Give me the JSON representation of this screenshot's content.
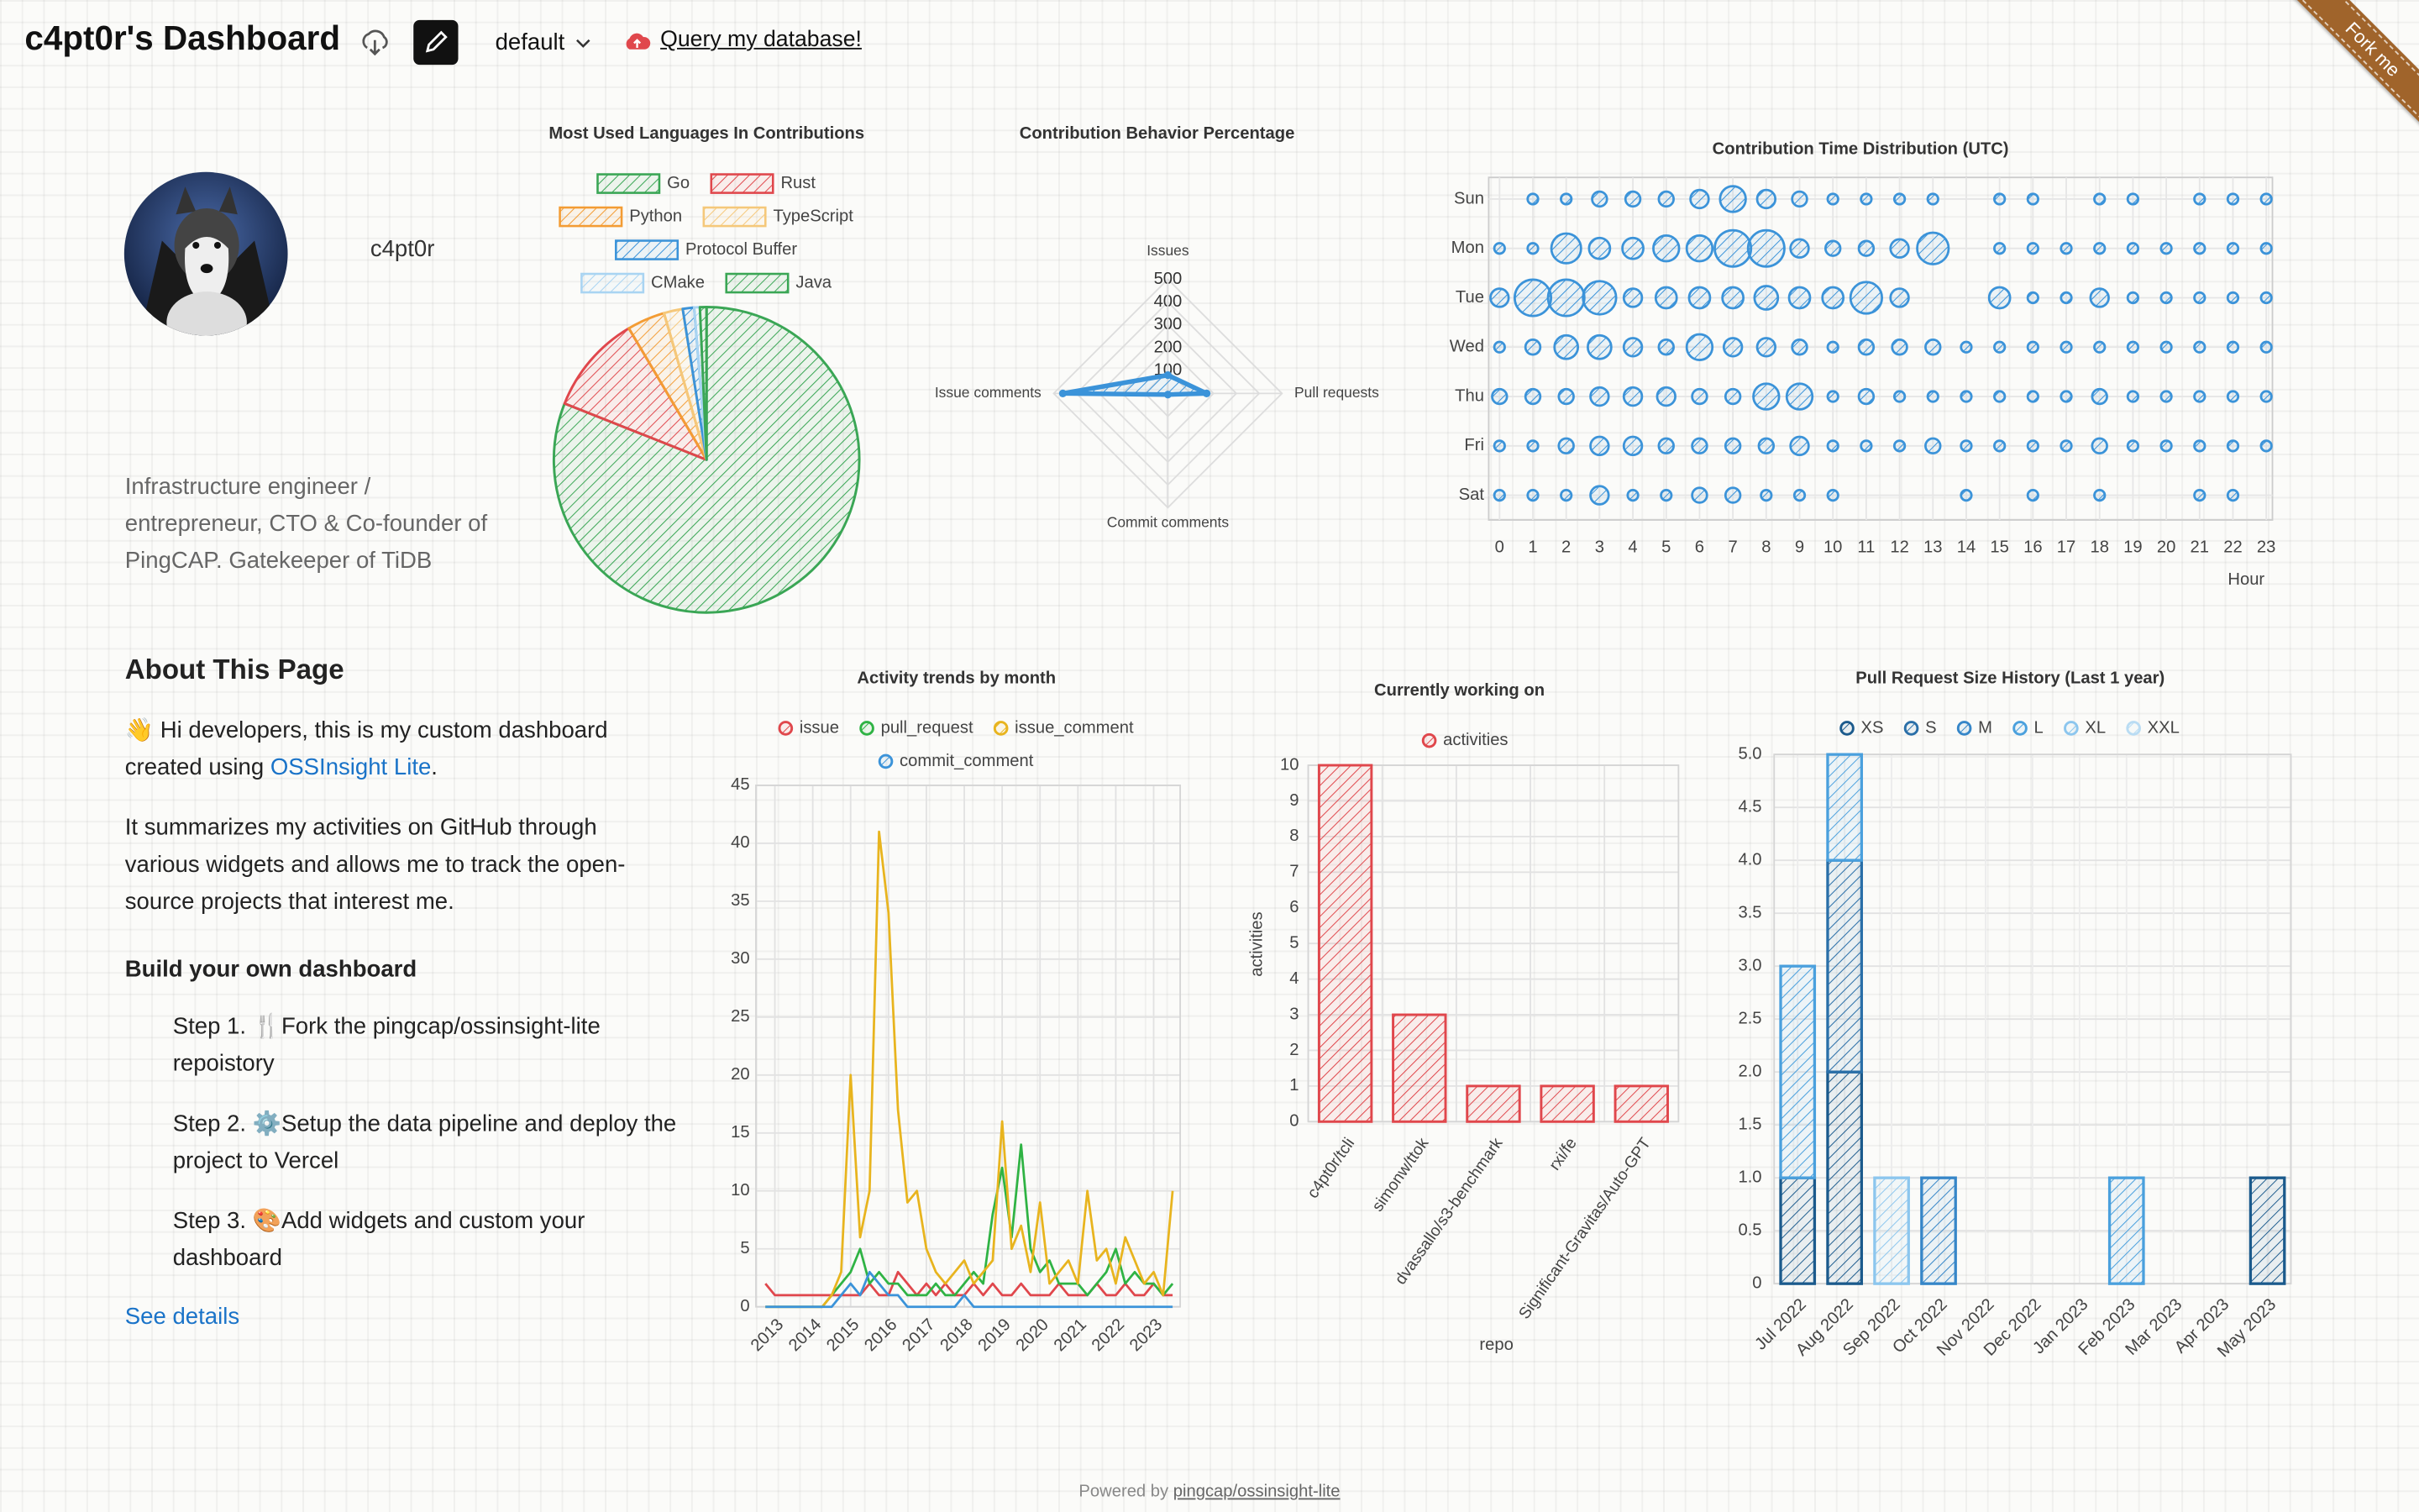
{
  "header": {
    "title": "c4pt0r's Dashboard",
    "theme": "default",
    "query_link": "Query my database!",
    "ribbon": "Fork me"
  },
  "profile": {
    "username": "c4pt0r",
    "bio": "Infrastructure engineer / entrepreneur, CTO & Co-founder of PingCAP. Gatekeeper of TiDB"
  },
  "about": {
    "title": "About This Page",
    "intro_prefix": "👋 Hi developers, this is my custom dashboard created using ",
    "intro_link": "OSSInsight Lite",
    "intro_suffix": ".",
    "paragraph": "It summarizes my activities on GitHub through various widgets and allows me to track the open-source projects that interest me.",
    "build_title": "Build your own dashboard",
    "steps": [
      "Step 1. 🍴Fork the pingcap/ossinsight-lite repoistory",
      "Step 2. ⚙️Setup the data pipeline and deploy the project to Vercel",
      "Step 3. 🎨Add widgets and custom your dashboard"
    ],
    "see_details": "See details"
  },
  "footer": {
    "prefix": "Powered by",
    "link": "pingcap/ossinsight-lite"
  },
  "chart_data": [
    {
      "type": "pie",
      "title": "Most Used Languages In Contributions",
      "categories": [
        "Go",
        "Rust",
        "Python",
        "TypeScript",
        "Protocol Buffer",
        "CMake",
        "Java"
      ],
      "values": [
        81,
        10.5,
        4,
        2,
        1.2,
        0.6,
        0.7
      ],
      "colors": [
        "#3aa655",
        "#e0474c",
        "#f39c34",
        "#f5c87a",
        "#3b93d9",
        "#a9d4f2",
        "#3aa655"
      ]
    },
    {
      "type": "radar",
      "title": "Contribution Behavior Percentage",
      "categories": [
        "Issues",
        "Pull requests",
        "Commit comments",
        "Issue comments"
      ],
      "values": [
        80,
        170,
        5,
        460
      ],
      "color": "#3b93d9",
      "ylim": [
        0,
        500
      ],
      "yticks": [
        100,
        200,
        300,
        400,
        500
      ]
    },
    {
      "type": "bubble",
      "title": "Contribution Time Distribution (UTC)",
      "xlabel": "Hour",
      "color": "#3b93d9",
      "categories": [
        "Sun",
        "Mon",
        "Tue",
        "Wed",
        "Thu",
        "Fri",
        "Sat"
      ],
      "x": [
        0,
        1,
        2,
        3,
        4,
        5,
        6,
        7,
        8,
        9,
        10,
        11,
        12,
        13,
        14,
        15,
        16,
        17,
        18,
        19,
        20,
        21,
        22,
        23
      ],
      "xlim": [
        0,
        23
      ],
      "xticks": [
        0,
        1,
        2,
        3,
        4,
        5,
        6,
        7,
        8,
        9,
        10,
        11,
        12,
        13,
        14,
        15,
        16,
        17,
        18,
        19,
        20,
        21,
        22,
        23
      ],
      "values": [
        [
          0,
          1,
          1,
          2,
          2,
          2,
          3,
          6,
          3,
          2,
          1,
          1,
          1,
          1,
          0,
          1,
          1,
          0,
          1,
          1,
          0,
          1,
          1,
          1
        ],
        [
          1,
          1,
          8,
          4,
          4,
          6,
          6,
          12,
          12,
          3,
          2,
          2,
          3,
          9,
          0,
          1,
          1,
          1,
          1,
          1,
          1,
          1,
          1,
          1
        ],
        [
          3,
          12,
          12,
          10,
          3,
          4,
          4,
          4,
          5,
          4,
          4,
          9,
          3,
          0,
          0,
          4,
          1,
          1,
          3,
          1,
          1,
          1,
          1,
          1
        ],
        [
          1,
          2,
          5,
          5,
          3,
          2,
          6,
          3,
          3,
          2,
          1,
          2,
          2,
          2,
          1,
          1,
          1,
          1,
          1,
          1,
          1,
          1,
          1,
          1
        ],
        [
          2,
          2,
          2,
          3,
          3,
          3,
          2,
          2,
          6,
          6,
          1,
          2,
          1,
          1,
          1,
          1,
          1,
          1,
          2,
          1,
          1,
          1,
          1,
          1
        ],
        [
          1,
          1,
          2,
          3,
          3,
          2,
          2,
          2,
          2,
          3,
          1,
          1,
          1,
          2,
          1,
          1,
          1,
          1,
          2,
          1,
          1,
          1,
          1,
          1
        ],
        [
          1,
          1,
          1,
          3,
          1,
          1,
          2,
          2,
          1,
          1,
          1,
          0,
          0,
          0,
          1,
          0,
          1,
          0,
          1,
          0,
          0,
          1,
          1,
          0
        ]
      ]
    },
    {
      "type": "line",
      "title": "Activity trends by month",
      "x": [
        2012.75,
        2013,
        2013.25,
        2013.5,
        2013.75,
        2014,
        2014.25,
        2014.5,
        2014.75,
        2015,
        2015.25,
        2015.5,
        2015.75,
        2016,
        2016.25,
        2016.5,
        2016.75,
        2017,
        2017.25,
        2017.5,
        2017.75,
        2018,
        2018.25,
        2018.5,
        2018.75,
        2019,
        2019.25,
        2019.5,
        2019.75,
        2020,
        2020.25,
        2020.5,
        2020.75,
        2021,
        2021.25,
        2021.5,
        2021.75,
        2022,
        2022.25,
        2022.5,
        2022.75,
        2023,
        2023.25,
        2023.5
      ],
      "xlim": [
        2012.5,
        2023.7
      ],
      "xticks": [
        2013,
        2014,
        2015,
        2016,
        2017,
        2018,
        2019,
        2020,
        2021,
        2022,
        2023
      ],
      "ylim": [
        0,
        45
      ],
      "yticks": [
        0,
        5,
        10,
        15,
        20,
        25,
        30,
        35,
        40,
        45
      ],
      "series": [
        {
          "name": "issue",
          "color": "#e0474c",
          "values": [
            2,
            1,
            1,
            1,
            1,
            1,
            1,
            1,
            1,
            1,
            1,
            2,
            1,
            1,
            3,
            2,
            1,
            2,
            1,
            2,
            1,
            1,
            2,
            1,
            2,
            1,
            1,
            2,
            1,
            1,
            1,
            2,
            1,
            1,
            1,
            2,
            1,
            1,
            2,
            1,
            1,
            2,
            1,
            1
          ]
        },
        {
          "name": "pull_request",
          "color": "#2fb344",
          "values": [
            0,
            0,
            0,
            0,
            0,
            0,
            0,
            1,
            2,
            3,
            5,
            2,
            3,
            2,
            2,
            1,
            1,
            1,
            2,
            1,
            1,
            2,
            3,
            2,
            8,
            12,
            6,
            14,
            5,
            3,
            4,
            2,
            2,
            2,
            1,
            2,
            3,
            5,
            2,
            3,
            2,
            2,
            1,
            2
          ]
        },
        {
          "name": "issue_comment",
          "color": "#e8b41e",
          "values": [
            0,
            0,
            0,
            0,
            0,
            0,
            0,
            1,
            3,
            20,
            6,
            10,
            41,
            34,
            17,
            9,
            10,
            5,
            3,
            2,
            3,
            4,
            2,
            3,
            4,
            16,
            5,
            7,
            3,
            9,
            2,
            3,
            4,
            2,
            10,
            4,
            5,
            2,
            6,
            4,
            2,
            3,
            1,
            10
          ]
        },
        {
          "name": "commit_comment",
          "color": "#3b93d9",
          "values": [
            0,
            0,
            0,
            0,
            0,
            0,
            0,
            0,
            1,
            2,
            1,
            3,
            2,
            1,
            1,
            0,
            0,
            0,
            0,
            0,
            0,
            1,
            0,
            0,
            0,
            0,
            0,
            0,
            0,
            0,
            0,
            0,
            0,
            0,
            0,
            0,
            0,
            0,
            0,
            0,
            0,
            0,
            0,
            0
          ]
        }
      ]
    },
    {
      "type": "bar",
      "title": "Currently working on",
      "xlabel": "repo",
      "ylabel": "activities",
      "categories": [
        "c4pt0r/tcli",
        "simonw/ttok",
        "dvassallo/s3-benchmark",
        "rxi/fe",
        "Significant-Gravitas/Auto-GPT"
      ],
      "series": [
        {
          "name": "activities",
          "color": "#e0474c",
          "values": [
            10,
            3,
            1,
            1,
            1
          ]
        }
      ],
      "ylim": [
        0,
        10
      ],
      "yticks": [
        0,
        1,
        2,
        3,
        4,
        5,
        6,
        7,
        8,
        9,
        10
      ]
    },
    {
      "type": "stacked_bar",
      "title": "Pull Request Size History (Last 1 year)",
      "categories": [
        "Jul 2022",
        "Aug 2022",
        "Sep 2022",
        "Oct 2022",
        "Nov 2022",
        "Dec 2022",
        "Jan 2023",
        "Feb 2023",
        "Mar 2023",
        "Apr 2023",
        "May 2023"
      ],
      "ylim": [
        0,
        5
      ],
      "yticks": [
        0,
        0.5,
        {
          "value": 1,
          "label": "1.0"
        },
        1.5,
        {
          "value": 2,
          "label": "2.0"
        },
        2.5,
        {
          "value": 3,
          "label": "3.0"
        },
        3.5,
        {
          "value": 4,
          "label": "4.0"
        },
        4.5,
        {
          "value": 5,
          "label": "5.0"
        }
      ],
      "series": [
        {
          "name": "XS",
          "color": "#1b5a8c",
          "values": [
            1,
            2,
            0,
            0,
            0,
            0,
            0,
            0,
            0,
            0,
            1
          ]
        },
        {
          "name": "S",
          "color": "#2a6fa8",
          "values": [
            0,
            2,
            0,
            0,
            0,
            0,
            0,
            0,
            0,
            0,
            0
          ]
        },
        {
          "name": "M",
          "color": "#3686c8",
          "values": [
            0,
            0,
            0,
            1,
            0,
            0,
            0,
            0,
            0,
            0,
            0
          ]
        },
        {
          "name": "L",
          "color": "#4aa0dd",
          "values": [
            2,
            1,
            0,
            0,
            0,
            0,
            0,
            1,
            0,
            0,
            0
          ]
        },
        {
          "name": "XL",
          "color": "#8cc6ee",
          "values": [
            0,
            0,
            1,
            0,
            0,
            0,
            0,
            0,
            0,
            0,
            0
          ]
        },
        {
          "name": "XXL",
          "color": "#b9dcf3",
          "values": [
            0,
            0,
            0,
            0,
            0,
            0,
            0,
            0,
            0,
            0,
            0
          ]
        }
      ]
    }
  ]
}
